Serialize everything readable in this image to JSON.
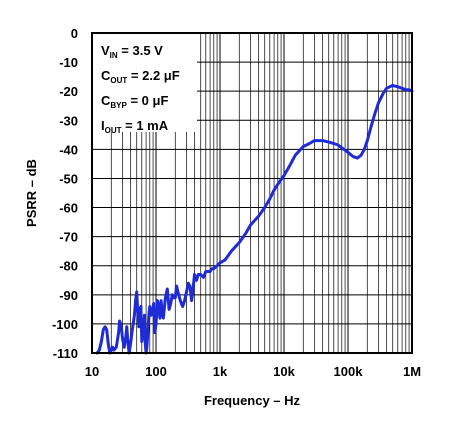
{
  "chart_data": {
    "type": "line",
    "xlabel": "Frequency – Hz",
    "ylabel": "PSRR – dB",
    "x_scale": "log",
    "xlim": [
      10,
      1000000
    ],
    "ylim": [
      -110,
      0
    ],
    "grid": true,
    "x_ticks": [
      {
        "value": 10,
        "label": "10"
      },
      {
        "value": 100,
        "label": "100"
      },
      {
        "value": 1000,
        "label": "1k"
      },
      {
        "value": 10000,
        "label": "10k"
      },
      {
        "value": 100000,
        "label": "100k"
      },
      {
        "value": 1000000,
        "label": "1M"
      }
    ],
    "y_ticks": [
      0,
      -10,
      -20,
      -30,
      -40,
      -50,
      -60,
      -70,
      -80,
      -90,
      -100,
      -110
    ],
    "y_tick_labels": [
      "0",
      "-10",
      "-20",
      "-30",
      "-40",
      "-50",
      "-60",
      "-70",
      "-80",
      "-90",
      "-100",
      "-110"
    ],
    "annotations": [
      {
        "main": "V",
        "sub": "IN",
        "rest": " = 3.5 V"
      },
      {
        "main": "C",
        "sub": "OUT",
        "rest": " = 2.2 μF"
      },
      {
        "main": "C",
        "sub": "BYP",
        "rest": " = 0 μF"
      },
      {
        "main": "I",
        "sub": "OUT",
        "rest": " = 1 mA"
      }
    ],
    "series_color": "#1f2bd6",
    "series": [
      {
        "x": [
          12,
          13,
          14,
          15,
          16,
          17,
          18,
          19,
          20,
          21,
          22,
          24,
          26,
          27,
          28,
          29,
          30,
          32,
          34,
          35,
          36,
          38,
          40,
          42,
          44,
          46,
          48,
          50,
          52,
          54,
          56,
          58,
          60,
          62,
          64,
          66,
          68,
          70,
          72,
          75,
          78,
          80,
          84,
          88,
          92,
          96,
          100,
          105,
          110,
          115,
          120,
          125,
          130,
          140,
          150,
          160,
          170,
          180,
          190,
          200,
          210,
          220,
          240,
          260,
          280,
          300,
          320,
          340,
          360,
          380,
          400,
          430,
          460,
          500,
          550,
          600,
          650,
          700,
          750,
          800,
          900,
          1000,
          1200,
          1500,
          2000,
          2500,
          3000,
          4000,
          5000,
          6000,
          7000,
          8000,
          10000,
          12000,
          15000,
          20000,
          25000,
          30000,
          35000,
          40000,
          50000,
          60000,
          70000,
          80000,
          100000,
          120000,
          140000,
          160000,
          180000,
          200000,
          230000,
          260000,
          300000,
          350000,
          400000,
          500000,
          600000,
          700000,
          800000,
          900000,
          1000000
        ],
        "y": [
          -110,
          -109,
          -106,
          -102,
          -101,
          -102,
          -107,
          -110,
          -109,
          -108,
          -109,
          -108,
          -103,
          -99,
          -100,
          -102,
          -105,
          -108,
          -104,
          -101,
          -105,
          -110,
          -107,
          -103,
          -100,
          -97,
          -92,
          -89,
          -96,
          -101,
          -95,
          -94,
          -106,
          -104,
          -101,
          -97,
          -107,
          -110,
          -108,
          -102,
          -96,
          -94,
          -97,
          -96,
          -93,
          -103,
          -100,
          -92,
          -94,
          -98,
          -92,
          -96,
          -98,
          -91,
          -88,
          -95,
          -93,
          -90,
          -91,
          -91,
          -87,
          -89,
          -92,
          -94,
          -92,
          -89,
          -86,
          -87,
          -92,
          -88,
          -83,
          -85,
          -83,
          -83,
          -84,
          -82,
          -82,
          -82,
          -81,
          -81,
          -80,
          -79,
          -78,
          -75,
          -72,
          -69,
          -66,
          -63,
          -60,
          -57,
          -54,
          -52,
          -49,
          -46,
          -42,
          -39,
          -38,
          -37,
          -37,
          -37,
          -37.5,
          -38,
          -38.5,
          -39.5,
          -41,
          -42.5,
          -43,
          -42,
          -40,
          -37,
          -32,
          -28,
          -24,
          -21,
          -19,
          -18,
          -18.5,
          -19,
          -19.5,
          -19.5,
          -20
        ]
      }
    ]
  }
}
